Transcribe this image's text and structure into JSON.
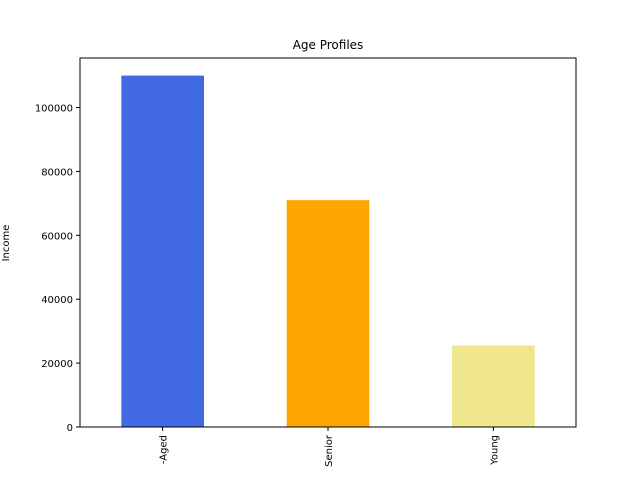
{
  "chart_data": {
    "type": "bar",
    "title": "Age Profiles",
    "xlabel": "",
    "ylabel": "Income",
    "categories": [
      "-Aged",
      "Senior",
      "Young"
    ],
    "values": [
      110000,
      71000,
      25500
    ],
    "colors": [
      "#4169E1",
      "#FFA500",
      "#F0E68C"
    ],
    "ylim": [
      0,
      115500
    ],
    "yticks": [
      0,
      20000,
      40000,
      60000,
      80000,
      100000
    ],
    "grid": false,
    "legend": "none"
  }
}
